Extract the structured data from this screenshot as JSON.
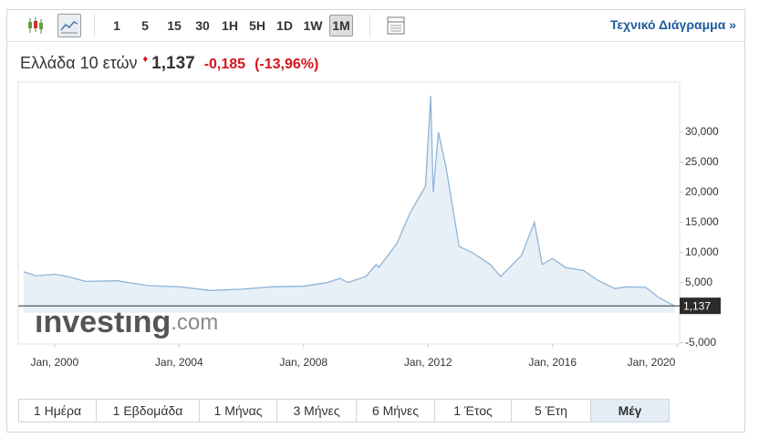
{
  "toolbar": {
    "intervals": [
      "1",
      "5",
      "15",
      "30",
      "1H",
      "5H",
      "1D",
      "1W",
      "1M"
    ],
    "link": "Τεχνικό Διάγραμμα »"
  },
  "quote": {
    "name": "Ελλάδα 10 ετών",
    "price": "1,137",
    "change": "-0,185",
    "change_percent": "(-13,96%)"
  },
  "chart_data": {
    "type": "area",
    "watermark": {
      "brand": "investing",
      "suffix": ".com"
    },
    "x": [
      "1999-01",
      "1999-06",
      "2000-01",
      "2000-06",
      "2001-01",
      "2002-01",
      "2003-01",
      "2004-01",
      "2005-01",
      "2006-01",
      "2007-01",
      "2008-01",
      "2008-10",
      "2009-03",
      "2009-06",
      "2010-01",
      "2010-05",
      "2010-06",
      "2011-01",
      "2011-06",
      "2011-12",
      "2012-02",
      "2012-03",
      "2012-05",
      "2012-08",
      "2013-01",
      "2013-06",
      "2014-01",
      "2014-05",
      "2015-01",
      "2015-06",
      "2015-09",
      "2016-01",
      "2016-06",
      "2017-01",
      "2017-06",
      "2018-01",
      "2018-06",
      "2019-01",
      "2019-06",
      "2019-12"
    ],
    "values": [
      6.8,
      6.1,
      6.4,
      6.0,
      5.2,
      5.3,
      4.5,
      4.3,
      3.7,
      3.9,
      4.3,
      4.4,
      5.0,
      5.7,
      5.0,
      6.0,
      8.0,
      7.5,
      11.5,
      16.5,
      21,
      36,
      20,
      30,
      24,
      11,
      10,
      8,
      6,
      9.5,
      15,
      8,
      9,
      7.5,
      7,
      5.5,
      4,
      4.3,
      4.2,
      2.5,
      1.137
    ],
    "color": "#8fb4d8",
    "fill": "#e8f0f7",
    "last_value": {
      "value": 1.137,
      "label": "1,137"
    },
    "xlim": [
      "1998-11",
      "2020-02"
    ],
    "xticks": [
      {
        "value": "2000-01",
        "label": "Jan, 2000"
      },
      {
        "value": "2004-01",
        "label": "Jan, 2004"
      },
      {
        "value": "2008-01",
        "label": "Jan, 2008"
      },
      {
        "value": "2012-01",
        "label": "Jan, 2012"
      },
      {
        "value": "2016-01",
        "label": "Jan, 2016"
      },
      {
        "value": "2020-01",
        "label": "Jan, 2020"
      }
    ],
    "ylim": [
      -5.2,
      38.3
    ],
    "yticks": [
      {
        "value": -5,
        "label": "-5,000"
      },
      {
        "value": 5,
        "label": "5,000"
      },
      {
        "value": 10,
        "label": "10,000"
      },
      {
        "value": 15,
        "label": "15,000"
      },
      {
        "value": 20,
        "label": "20,000"
      },
      {
        "value": 25,
        "label": "25,000"
      },
      {
        "value": 30,
        "label": "30,000"
      }
    ],
    "grid": false
  },
  "ranges": [
    "1 Ημέρα",
    "1 Εβδομάδα",
    "1 Μήνας",
    "3 Μήνες",
    "6 Μήνες",
    "1 Έτος",
    "5 Έτη",
    "Μέγ"
  ]
}
